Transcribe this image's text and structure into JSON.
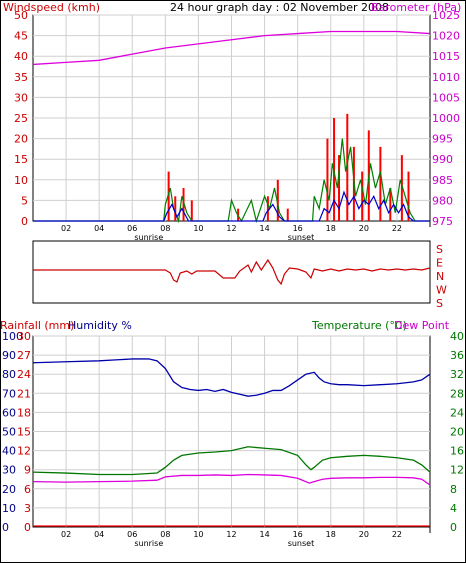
{
  "colors": {
    "windspeed": "#ff0000",
    "gust": "#008000",
    "avg": "#0000cc",
    "barometer": "#dd00dd",
    "direction": "#cc0000",
    "humidity": "#0000aa",
    "temperature": "#007700",
    "dewpoint": "#dd00dd",
    "rainfall": "#ff0000",
    "frame": "#000000",
    "grid": "#cfcfcf"
  },
  "chart_data": [
    {
      "type": "line",
      "title": "24 hour graph day : 02 November 2008",
      "left_axis_label": "Windspeed (kmh)",
      "right_axis_label": "Barometer (hPa)",
      "left_ticks": [
        "0",
        "5",
        "10",
        "15",
        "20",
        "25",
        "30",
        "35",
        "40",
        "45",
        "50"
      ],
      "right_ticks": [
        "975",
        "980",
        "985",
        "990",
        "995",
        "1000",
        "1005",
        "1010",
        "1015",
        "1020",
        "1025"
      ],
      "ylim_left": [
        0,
        50
      ],
      "ylim_right": [
        975,
        1025
      ],
      "x_ticks": [
        "02",
        "04",
        "06",
        "08",
        "10",
        "12",
        "14",
        "16",
        "18",
        "20",
        "22"
      ],
      "x_markers": [
        {
          "hour": 7,
          "label": "sunrise"
        },
        {
          "hour": 16.2,
          "label": "sunset"
        }
      ],
      "xlim": [
        0,
        24
      ],
      "barometer": [
        [
          0,
          1013
        ],
        [
          2,
          1013.5
        ],
        [
          4,
          1014
        ],
        [
          6,
          1015.5
        ],
        [
          8,
          1017
        ],
        [
          10,
          1018
        ],
        [
          12,
          1019
        ],
        [
          14,
          1020
        ],
        [
          16,
          1020.5
        ],
        [
          18,
          1021
        ],
        [
          20,
          1021
        ],
        [
          22,
          1021
        ],
        [
          24,
          1020.5
        ]
      ],
      "wind_red_bars": [
        [
          8.2,
          12
        ],
        [
          8.6,
          6
        ],
        [
          9.1,
          8
        ],
        [
          9.6,
          5
        ],
        [
          12.4,
          3
        ],
        [
          14.2,
          6
        ],
        [
          14.8,
          10
        ],
        [
          15.4,
          3
        ],
        [
          17.8,
          20
        ],
        [
          18.2,
          25
        ],
        [
          18.5,
          16
        ],
        [
          19.0,
          26
        ],
        [
          19.4,
          18
        ],
        [
          19.9,
          12
        ],
        [
          20.3,
          22
        ],
        [
          21.0,
          18
        ],
        [
          21.6,
          8
        ],
        [
          22.3,
          16
        ],
        [
          22.7,
          12
        ]
      ],
      "wind_gust": [
        [
          0,
          0
        ],
        [
          7.9,
          0
        ],
        [
          8.0,
          4
        ],
        [
          8.3,
          8
        ],
        [
          8.5,
          3
        ],
        [
          8.8,
          0
        ],
        [
          9.0,
          6
        ],
        [
          9.3,
          2
        ],
        [
          9.6,
          0
        ],
        [
          11.8,
          0
        ],
        [
          12.0,
          5
        ],
        [
          12.3,
          2
        ],
        [
          12.6,
          0
        ],
        [
          13.2,
          5
        ],
        [
          13.5,
          0
        ],
        [
          14.0,
          6
        ],
        [
          14.3,
          3
        ],
        [
          14.6,
          8
        ],
        [
          14.9,
          2
        ],
        [
          15.2,
          0
        ],
        [
          16.9,
          0
        ],
        [
          17.0,
          6
        ],
        [
          17.3,
          3
        ],
        [
          17.6,
          10
        ],
        [
          17.9,
          5
        ],
        [
          18.1,
          14
        ],
        [
          18.4,
          8
        ],
        [
          18.7,
          20
        ],
        [
          18.9,
          12
        ],
        [
          19.2,
          18
        ],
        [
          19.5,
          6
        ],
        [
          19.8,
          10
        ],
        [
          20.1,
          4
        ],
        [
          20.4,
          14
        ],
        [
          20.7,
          8
        ],
        [
          21.0,
          12
        ],
        [
          21.3,
          4
        ],
        [
          21.6,
          8
        ],
        [
          21.9,
          2
        ],
        [
          22.2,
          10
        ],
        [
          22.5,
          6
        ],
        [
          22.8,
          2
        ],
        [
          23.1,
          0
        ],
        [
          24,
          0
        ]
      ],
      "wind_avg": [
        [
          0,
          0
        ],
        [
          7.9,
          0
        ],
        [
          8.1,
          2
        ],
        [
          8.4,
          4
        ],
        [
          8.7,
          1
        ],
        [
          9.0,
          3
        ],
        [
          9.4,
          0
        ],
        [
          13.9,
          0
        ],
        [
          14.1,
          2
        ],
        [
          14.5,
          4
        ],
        [
          14.9,
          1
        ],
        [
          15.2,
          0
        ],
        [
          17.3,
          0
        ],
        [
          17.6,
          3
        ],
        [
          17.9,
          2
        ],
        [
          18.2,
          5
        ],
        [
          18.5,
          3
        ],
        [
          18.8,
          7
        ],
        [
          19.1,
          4
        ],
        [
          19.4,
          6
        ],
        [
          19.7,
          3
        ],
        [
          20.0,
          5
        ],
        [
          20.3,
          4
        ],
        [
          20.6,
          6
        ],
        [
          20.9,
          3
        ],
        [
          21.2,
          5
        ],
        [
          21.5,
          2
        ],
        [
          21.8,
          4
        ],
        [
          22.1,
          2
        ],
        [
          22.4,
          4
        ],
        [
          22.7,
          1
        ],
        [
          23.0,
          0
        ],
        [
          24,
          0
        ]
      ]
    },
    {
      "type": "line",
      "series_name": "direction",
      "right_ticks": [
        "S",
        "E",
        "N",
        "W",
        "S"
      ],
      "direction": [
        [
          0,
          0
        ],
        [
          7.5,
          0
        ],
        [
          8.0,
          0
        ],
        [
          8.3,
          -3
        ],
        [
          8.5,
          -10
        ],
        [
          8.7,
          -12
        ],
        [
          8.9,
          -3
        ],
        [
          9.3,
          -1
        ],
        [
          9.6,
          -4
        ],
        [
          9.9,
          -1
        ],
        [
          11.0,
          -1
        ],
        [
          11.5,
          -8
        ],
        [
          12.2,
          -8
        ],
        [
          12.5,
          -1
        ],
        [
          13.0,
          5
        ],
        [
          13.2,
          -2
        ],
        [
          13.5,
          8
        ],
        [
          13.8,
          0
        ],
        [
          14.2,
          10
        ],
        [
          14.5,
          2
        ],
        [
          14.8,
          -10
        ],
        [
          15.0,
          -14
        ],
        [
          15.2,
          -4
        ],
        [
          15.5,
          2
        ],
        [
          16.0,
          1
        ],
        [
          16.5,
          -2
        ],
        [
          16.8,
          -8
        ],
        [
          17.0,
          1
        ],
        [
          17.5,
          -1
        ],
        [
          18,
          1
        ],
        [
          18.5,
          -1
        ],
        [
          19,
          1
        ],
        [
          19.5,
          0
        ],
        [
          20,
          1
        ],
        [
          20.5,
          -1
        ],
        [
          21,
          1
        ],
        [
          21.5,
          0
        ],
        [
          22,
          1
        ],
        [
          22.5,
          0
        ],
        [
          23,
          1
        ],
        [
          23.5,
          0
        ],
        [
          24,
          2
        ]
      ]
    },
    {
      "type": "line",
      "left_axis_label": "Rainfall (mm)",
      "left_axis_label2": "Humidity %",
      "right_axis_label": "Temperature (°C)",
      "right_axis_label2": "Dew Point",
      "humidity_ticks": [
        "0",
        "10",
        "20",
        "30",
        "40",
        "50",
        "60",
        "70",
        "80",
        "90",
        "100"
      ],
      "rain_ticks": [
        "0",
        "3",
        "6",
        "9",
        "12",
        "15",
        "18",
        "21",
        "24",
        "27",
        "30"
      ],
      "right_ticks": [
        "0",
        "4",
        "8",
        "12",
        "16",
        "20",
        "24",
        "28",
        "32",
        "36",
        "40"
      ],
      "x_ticks": [
        "02",
        "04",
        "06",
        "08",
        "10",
        "12",
        "14",
        "16",
        "18",
        "20",
        "22"
      ],
      "x_markers": [
        {
          "hour": 7,
          "label": "sunrise"
        },
        {
          "hour": 16.2,
          "label": "sunset"
        }
      ],
      "xlim": [
        0,
        24
      ],
      "ylim_left": [
        0,
        100
      ],
      "ylim_right": [
        0,
        40
      ],
      "humidity": [
        [
          0,
          86
        ],
        [
          2,
          86.5
        ],
        [
          4,
          87
        ],
        [
          5,
          87.5
        ],
        [
          6,
          88
        ],
        [
          7,
          88
        ],
        [
          7.5,
          87
        ],
        [
          8.0,
          83
        ],
        [
          8.5,
          76
        ],
        [
          9,
          73
        ],
        [
          9.5,
          72
        ],
        [
          10,
          71.5
        ],
        [
          10.5,
          72
        ],
        [
          11,
          71
        ],
        [
          11.5,
          72
        ],
        [
          12,
          70.5
        ],
        [
          12.5,
          69.5
        ],
        [
          13,
          68.5
        ],
        [
          13.5,
          69
        ],
        [
          14,
          70
        ],
        [
          14.5,
          71.5
        ],
        [
          15,
          71.5
        ],
        [
          15.5,
          74
        ],
        [
          16,
          77
        ],
        [
          16.5,
          80
        ],
        [
          17,
          81
        ],
        [
          17.3,
          78
        ],
        [
          17.6,
          76
        ],
        [
          18,
          75
        ],
        [
          18.5,
          74.5
        ],
        [
          19,
          74.5
        ],
        [
          20,
          74
        ],
        [
          21,
          74.5
        ],
        [
          22,
          75
        ],
        [
          23,
          76
        ],
        [
          23.5,
          77
        ],
        [
          24,
          80
        ]
      ],
      "temperature": [
        [
          0,
          11.5
        ],
        [
          2,
          11.3
        ],
        [
          4,
          11
        ],
        [
          6,
          11
        ],
        [
          7.5,
          11.3
        ],
        [
          8,
          12.5
        ],
        [
          8.5,
          14
        ],
        [
          9,
          15
        ],
        [
          10,
          15.5
        ],
        [
          11,
          15.7
        ],
        [
          12,
          16
        ],
        [
          13,
          16.8
        ],
        [
          14,
          16.5
        ],
        [
          15,
          16.2
        ],
        [
          16,
          15
        ],
        [
          16.5,
          13
        ],
        [
          16.8,
          12
        ],
        [
          17,
          12.5
        ],
        [
          17.5,
          14
        ],
        [
          18,
          14.5
        ],
        [
          19,
          14.8
        ],
        [
          20,
          15
        ],
        [
          21,
          14.8
        ],
        [
          22,
          14.5
        ],
        [
          23,
          14
        ],
        [
          23.5,
          13
        ],
        [
          24,
          11.5
        ]
      ],
      "dewpoint": [
        [
          0,
          9.5
        ],
        [
          2,
          9.4
        ],
        [
          4,
          9.5
        ],
        [
          6,
          9.6
        ],
        [
          7.5,
          9.8
        ],
        [
          8,
          10.5
        ],
        [
          9,
          10.8
        ],
        [
          10,
          10.8
        ],
        [
          11,
          10.9
        ],
        [
          12,
          10.8
        ],
        [
          13,
          11
        ],
        [
          14,
          10.9
        ],
        [
          15,
          10.8
        ],
        [
          16,
          10.2
        ],
        [
          16.7,
          9.2
        ],
        [
          17,
          9.5
        ],
        [
          17.5,
          10
        ],
        [
          18,
          10.2
        ],
        [
          19,
          10.3
        ],
        [
          20,
          10.3
        ],
        [
          21,
          10.4
        ],
        [
          22,
          10.4
        ],
        [
          23,
          10.3
        ],
        [
          23.5,
          10
        ],
        [
          24,
          8.8
        ]
      ],
      "rainfall": [
        [
          0,
          0
        ],
        [
          24,
          0
        ]
      ]
    }
  ]
}
